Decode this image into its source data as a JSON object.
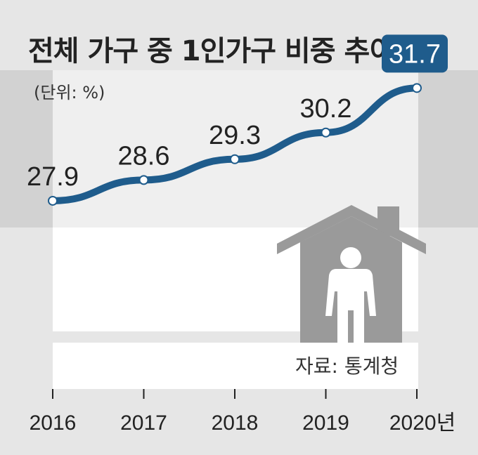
{
  "title": "전체 가구 중 1인가구 비중 추이",
  "unit_label": "(단위: %)",
  "source": "자료: 통계청",
  "colors": {
    "line": "#1f5c8c",
    "highlight_box": "#1f5c8c",
    "background": "#e6e6e6",
    "house": "#9a9a9a"
  },
  "icons": [
    "house-icon",
    "person-icon"
  ],
  "chart_data": {
    "type": "line",
    "title": "전체 가구 중 1인가구 비중 추이",
    "unit": "(단위: %)",
    "x": [
      "2016",
      "2017",
      "2018",
      "2019",
      "2020년"
    ],
    "values": [
      27.9,
      28.6,
      29.3,
      30.2,
      31.7
    ],
    "value_labels": [
      "27.9",
      "28.6",
      "29.3",
      "30.2",
      "31.7"
    ],
    "highlight_index": 4,
    "xlabel": "",
    "ylabel": "",
    "ylim": [
      27.0,
      32.3
    ],
    "grid": false,
    "legend": "none"
  }
}
